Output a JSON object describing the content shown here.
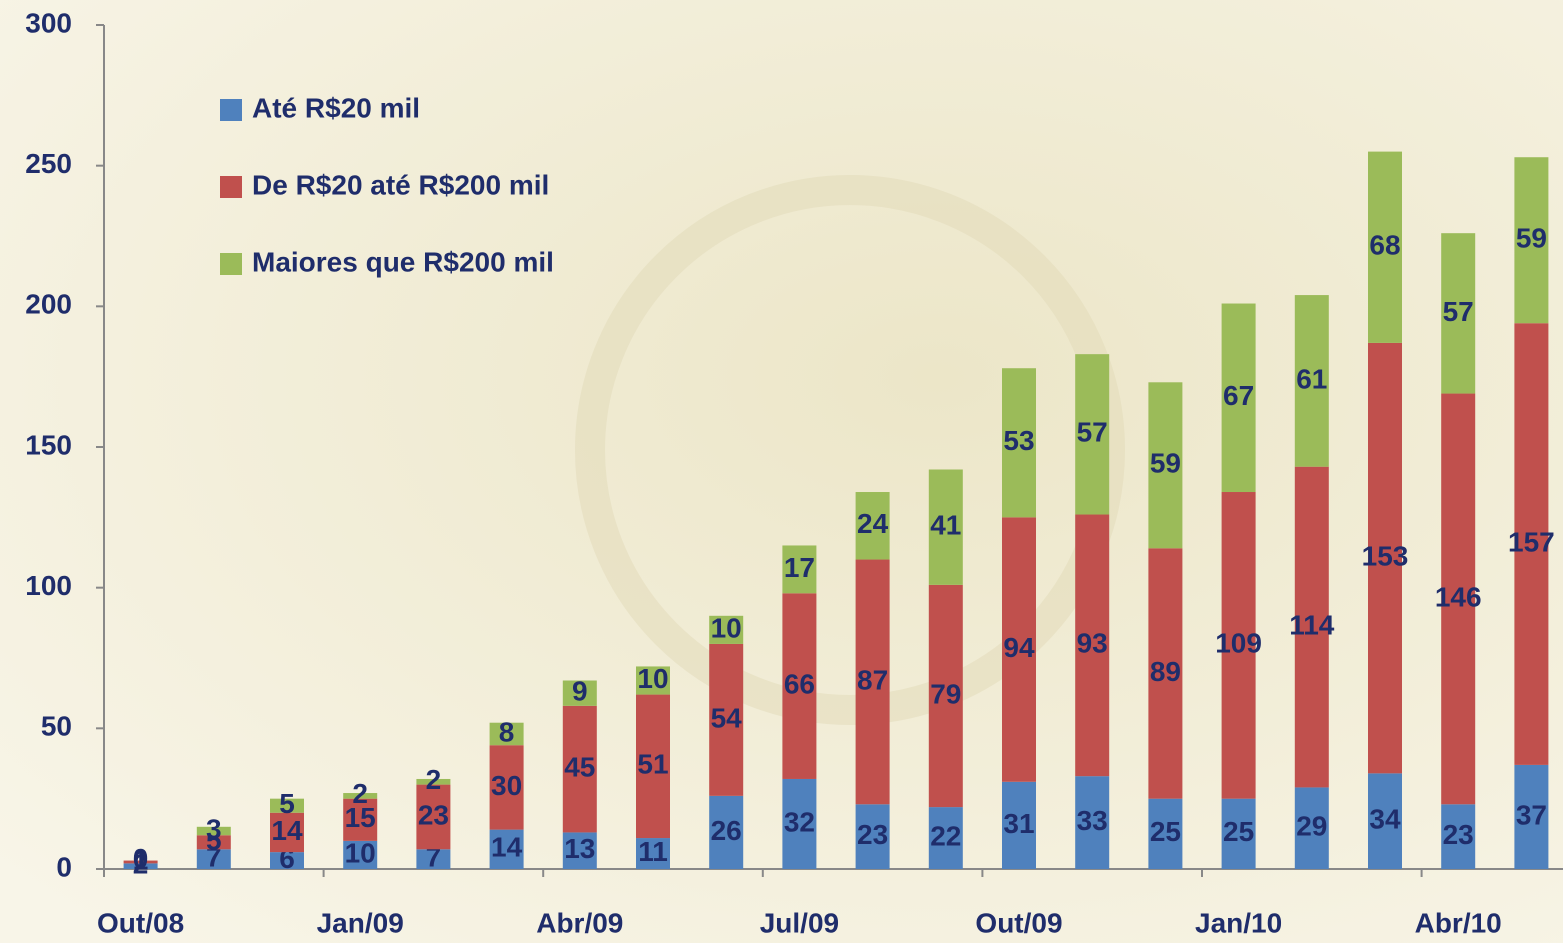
{
  "chart_data": {
    "type": "stacked_bar",
    "categories": [
      "Out/08",
      null,
      null,
      "Jan/09",
      null,
      null,
      "Abr/09",
      null,
      null,
      "Jul/09",
      null,
      null,
      "Out/09",
      null,
      null,
      "Jan/10",
      null,
      null,
      "Abr/10",
      null
    ],
    "series": [
      {
        "name": "Até R$20 mil",
        "color": "#4f81bd",
        "values": [
          2,
          7,
          6,
          10,
          7,
          14,
          13,
          11,
          26,
          32,
          23,
          22,
          31,
          33,
          25,
          25,
          29,
          34,
          23,
          37
        ]
      },
      {
        "name": "De R$20 até R$200 mil",
        "color": "#c0504d",
        "values": [
          1,
          5,
          14,
          15,
          23,
          30,
          45,
          51,
          54,
          66,
          87,
          79,
          94,
          93,
          89,
          109,
          114,
          153,
          146,
          157
        ]
      },
      {
        "name": "Maiores que R$200 mil",
        "color": "#9bbb59",
        "values": [
          0,
          3,
          5,
          2,
          2,
          8,
          9,
          10,
          10,
          17,
          24,
          41,
          53,
          57,
          59,
          67,
          61,
          68,
          57,
          59
        ]
      }
    ],
    "ylim": [
      0,
      300
    ],
    "yticks": [
      0,
      50,
      100,
      150,
      200,
      250,
      300
    ]
  }
}
